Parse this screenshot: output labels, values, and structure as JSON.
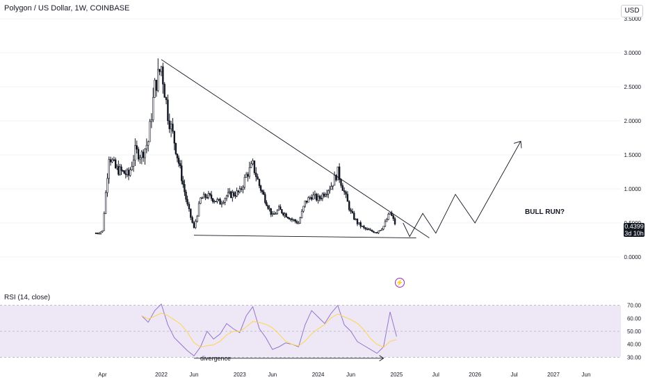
{
  "header": {
    "title": "Polygon / US Dollar, 1W, COINBASE",
    "currency": "USD"
  },
  "price_tag": {
    "value": "0.4399",
    "countdown": "3d 10h"
  },
  "rsi_panel": {
    "title": "RSI (14, close)"
  },
  "annotations": {
    "bull_run": "BULL RUN?",
    "divergence": "divergence"
  },
  "colors": {
    "candle": "#131722",
    "rsi_line": "#9575cd",
    "rsi_ma": "#ffd54f",
    "rsi_band": "#ede7f6",
    "trendline": "#131722",
    "grid": "#f0f3fa",
    "bolt": "#9c27b0"
  },
  "chart_data": [
    {
      "type": "candlestick",
      "title": "Polygon / US Dollar, 1W, COINBASE",
      "y_axis": {
        "ticks": [
          "0.0000",
          "0.5000",
          "1.0000",
          "1.5000",
          "2.0000",
          "2.5000",
          "3.0000",
          "3.5000"
        ],
        "ylim": [
          0,
          3.5
        ],
        "side": "right",
        "grid": true
      },
      "x_axis": {
        "ticks": [
          "Apr",
          "2022",
          "Jun",
          "2023",
          "Jun",
          "2024",
          "Jun",
          "2025",
          "Jul",
          "2026",
          "Jul",
          "2027",
          "Jun"
        ]
      },
      "close_series": {
        "x": [
          "2021-03",
          "2021-04",
          "2021-05",
          "2021-06",
          "2021-08",
          "2021-09",
          "2021-10",
          "2021-11",
          "2021-12",
          "2022-01",
          "2022-02",
          "2022-03",
          "2022-05",
          "2022-06",
          "2022-07",
          "2022-08",
          "2022-10",
          "2022-11",
          "2023-01",
          "2023-02",
          "2023-03",
          "2023-04",
          "2023-06",
          "2023-07",
          "2023-09",
          "2023-10",
          "2023-11",
          "2023-12",
          "2024-01",
          "2024-03",
          "2024-04",
          "2024-05",
          "2024-06",
          "2024-07",
          "2024-08",
          "2024-09",
          "2024-10",
          "2024-11",
          "2024-12",
          "2025-01"
        ],
        "y": [
          0.35,
          0.38,
          1.5,
          1.3,
          1.2,
          1.55,
          1.5,
          1.7,
          2.5,
          2.8,
          2.1,
          1.7,
          0.75,
          0.42,
          0.85,
          0.9,
          0.8,
          0.9,
          0.95,
          1.2,
          1.35,
          1.05,
          0.6,
          0.7,
          0.55,
          0.5,
          0.8,
          0.9,
          0.85,
          1.05,
          1.25,
          0.95,
          0.65,
          0.5,
          0.42,
          0.38,
          0.37,
          0.45,
          0.65,
          0.44
        ]
      },
      "last_price": 0.4399,
      "annotations": [
        "BULL RUN?"
      ]
    },
    {
      "type": "line",
      "title": "RSI (14, close)",
      "y_axis": {
        "ticks": [
          "30.00",
          "40.00",
          "50.00",
          "60.00",
          "70.00"
        ],
        "ylim": [
          28,
          72
        ]
      },
      "series": [
        {
          "x": [
            "2021-10",
            "2021-11",
            "2021-12",
            "2022-01",
            "2022-02",
            "2022-03",
            "2022-04",
            "2022-05",
            "2022-06",
            "2022-07",
            "2022-08",
            "2022-09",
            "2022-10",
            "2022-11",
            "2022-12",
            "2023-01",
            "2023-02",
            "2023-03",
            "2023-04",
            "2023-05",
            "2023-06",
            "2023-07",
            "2023-08",
            "2023-09",
            "2023-10",
            "2023-11",
            "2023-12",
            "2024-01",
            "2024-02",
            "2024-03",
            "2024-04",
            "2024-05",
            "2024-06",
            "2024-07",
            "2024-08",
            "2024-09",
            "2024-10",
            "2024-11",
            "2024-12",
            "2025-01"
          ],
          "values": [
            62,
            57,
            66,
            71,
            55,
            45,
            40,
            35,
            31,
            38,
            50,
            44,
            48,
            56,
            52,
            49,
            62,
            69,
            52,
            45,
            36,
            38,
            41,
            40,
            38,
            55,
            66,
            61,
            56,
            64,
            70,
            55,
            50,
            42,
            39,
            36,
            33,
            38,
            65,
            46
          ]
        }
      ],
      "annotations": [
        "divergence"
      ]
    }
  ]
}
